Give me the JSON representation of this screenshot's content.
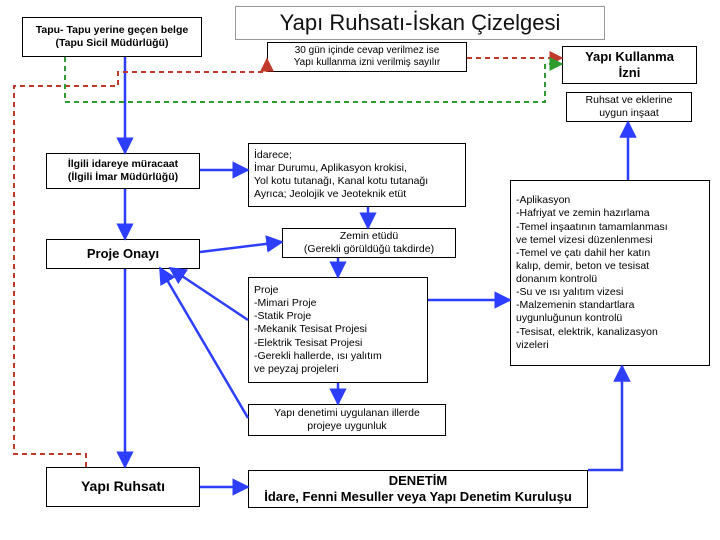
{
  "colors": {
    "solid_blue": "#2e3eff",
    "dashed_red": "#c0392b",
    "dashed_green": "#2e9c2e",
    "border": "#000000",
    "text": "#111111"
  },
  "title": "Yapı Ruhsatı-İskan Çizelgesi",
  "boxes": {
    "tapu": "Tapu- Tapu yerine geçen belge\n(Tapu Sicil Müdürlüğü)",
    "subnote": "30 gün içinde cevap verilmez ise\nYapı kullanma izni verilmiş sayılır",
    "kullanma": "Yapı Kullanma\nİzni",
    "ruhsat_ek": "Ruhsat ve eklerine\nuygun inşaat",
    "ilgili": "İlgili idareye müracaat\n(İlgili İmar Müdürlüğü)",
    "idarece": "İdarece;\nİmar Durumu, Aplikasyon krokisi,\nYol kotu tutanağı, Kanal kotu tutanağı\nAyrıca; Jeolojik ve Jeoteknik etüt",
    "proje_onayi": "Proje Onayı",
    "zemin": "Zemin etüdü\n(Gerekli görüldüğü takdirde)",
    "proje_list": "Proje\n-Mimari Proje\n-Statik Proje\n-Mekanik Tesisat Projesi\n-Elektrik Tesisat Projesi\n-Gerekli hallerde, ısı yalıtım\nve peyzaj projeleri",
    "aplikasyon": "-Aplikasyon\n-Hafriyat ve zemin hazırlama\n-Temel inşaatının tamamlanması\nve temel vizesi düzenlenmesi\n-Temel ve çatı dahil her katın\nkalıp, demir, beton ve tesisat\ndonanım kontrolü\n-Su ve ısı yalıtım vizesi\n-Malzemenin standartlara\nuygunluğunun kontrolü\n-Tesisat, elektrik, kanalizasyon\nvizeleri",
    "denetim_uygulanan": "Yapı denetimi uygulanan illerde\nprojeye uygunluk",
    "yapi_ruhsati": "Yapı Ruhsatı",
    "denetim": "DENETİM\nİdare, Fenni Mesuller veya Yapı Denetim Kuruluşu"
  }
}
